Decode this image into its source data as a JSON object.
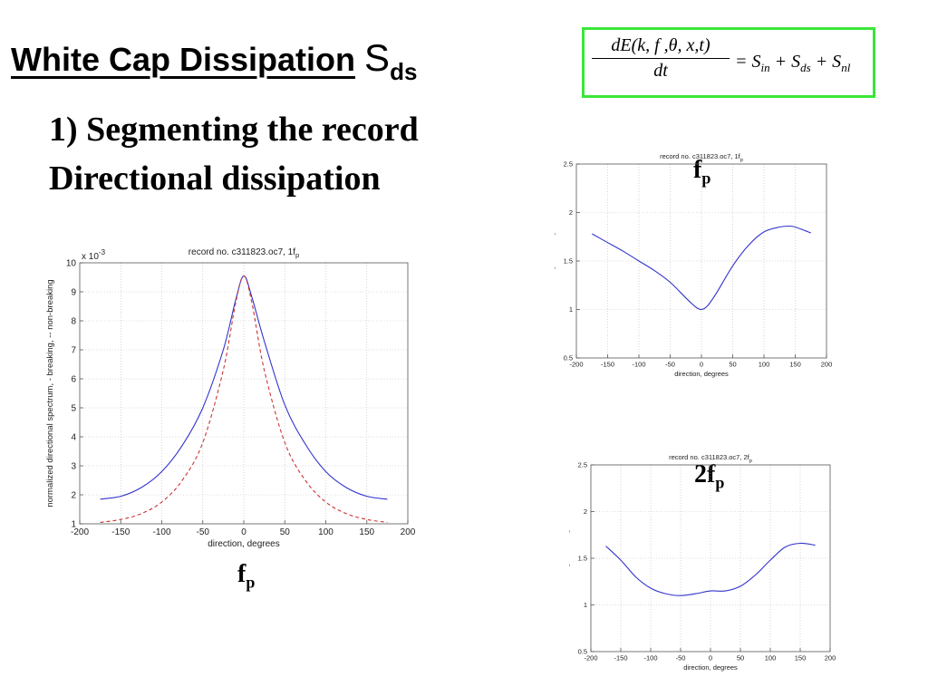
{
  "slide": {
    "title_main": "White Cap Dissipation",
    "title_symbol": "S",
    "title_symbol_sub": "ds",
    "subtitle_line1": "1) Segmenting the record",
    "subtitle_line2": "Directional dissipation"
  },
  "equation": {
    "numerator": "dE(k, f ,θ, x,t)",
    "denominator": "dt",
    "rhs_eq": "= S",
    "sub_in": "in",
    "plus1": " + S",
    "sub_ds": "ds",
    "plus2": " + S",
    "sub_nl": "nl",
    "border_color": "#39e639"
  },
  "labels": {
    "left_f": "f",
    "left_p": "p",
    "top_right_f": "f",
    "top_right_p": "p",
    "bottom_right_f": "2f",
    "bottom_right_p": "p"
  },
  "chart_data": [
    {
      "type": "line",
      "title": "record no. c311823.oc7, 1f",
      "title_sub": "p",
      "xlabel": "direction, degrees",
      "ylabel": "normalized directional spectrum, - breaking, -- non-breaking",
      "y_exponent_label": "x 10",
      "y_exponent_sup": "-3",
      "xlim": [
        -200,
        200
      ],
      "ylim": [
        1,
        10
      ],
      "xticks": [
        -200,
        -150,
        -100,
        -50,
        0,
        50,
        100,
        150,
        200
      ],
      "yticks": [
        1,
        2,
        3,
        4,
        5,
        6,
        7,
        8,
        9,
        10
      ],
      "grid": true,
      "series": [
        {
          "style": "solid",
          "color": "#3333cc",
          "x": [
            -175,
            -150,
            -125,
            -100,
            -75,
            -50,
            -25,
            -10,
            0,
            10,
            25,
            50,
            75,
            100,
            125,
            150,
            175
          ],
          "values": [
            1.85,
            1.95,
            2.25,
            2.8,
            3.7,
            5.0,
            7.0,
            8.7,
            9.55,
            8.8,
            7.3,
            5.1,
            3.75,
            2.8,
            2.25,
            1.95,
            1.85
          ]
        },
        {
          "style": "dashed",
          "color": "#cc3333",
          "x": [
            -175,
            -150,
            -125,
            -100,
            -75,
            -50,
            -25,
            -10,
            0,
            10,
            25,
            50,
            75,
            100,
            125,
            150,
            175
          ],
          "values": [
            1.05,
            1.15,
            1.35,
            1.75,
            2.5,
            3.8,
            6.3,
            8.6,
            9.55,
            8.6,
            6.3,
            3.8,
            2.5,
            1.75,
            1.35,
            1.15,
            1.05
          ]
        }
      ]
    },
    {
      "type": "line",
      "title": "record no. c311823.oc7, 1f",
      "title_sub": "p",
      "xlabel": "direction, degrees",
      "ylabel": "S",
      "ylabel_sub": "breaking",
      "ylabel_mid": "/S",
      "ylabel_sub2": "non-breaking",
      "xlim": [
        -200,
        200
      ],
      "ylim": [
        0.5,
        2.5
      ],
      "xticks": [
        -200,
        -150,
        -100,
        -50,
        0,
        50,
        100,
        150,
        200
      ],
      "yticks": [
        0.5,
        1,
        1.5,
        2,
        2.5
      ],
      "grid": true,
      "series": [
        {
          "style": "solid",
          "color": "#3333cc",
          "x": [
            -175,
            -150,
            -125,
            -100,
            -75,
            -50,
            -25,
            -10,
            0,
            10,
            25,
            50,
            75,
            100,
            125,
            140,
            150,
            175
          ],
          "values": [
            1.78,
            1.69,
            1.6,
            1.5,
            1.4,
            1.28,
            1.12,
            1.03,
            1.0,
            1.04,
            1.18,
            1.45,
            1.66,
            1.8,
            1.85,
            1.86,
            1.85,
            1.79
          ]
        }
      ]
    },
    {
      "type": "line",
      "title": "record no. c311823.oc7, 2f",
      "title_sub": "p",
      "xlabel": "direction, degrees",
      "ylabel": "S",
      "ylabel_sub": "breaking",
      "ylabel_mid": "/S",
      "ylabel_sub2": "non-breaking",
      "xlim": [
        -200,
        200
      ],
      "ylim": [
        0.5,
        2.5
      ],
      "xticks": [
        -200,
        -150,
        -100,
        -50,
        0,
        50,
        100,
        150,
        200
      ],
      "yticks": [
        0.5,
        1,
        1.5,
        2,
        2.5
      ],
      "grid": true,
      "series": [
        {
          "style": "solid",
          "color": "#3333cc",
          "x": [
            -175,
            -150,
            -125,
            -100,
            -75,
            -50,
            -25,
            0,
            25,
            50,
            75,
            100,
            125,
            150,
            175
          ],
          "values": [
            1.63,
            1.48,
            1.3,
            1.18,
            1.12,
            1.1,
            1.12,
            1.15,
            1.15,
            1.2,
            1.32,
            1.48,
            1.62,
            1.66,
            1.64
          ]
        }
      ]
    }
  ]
}
